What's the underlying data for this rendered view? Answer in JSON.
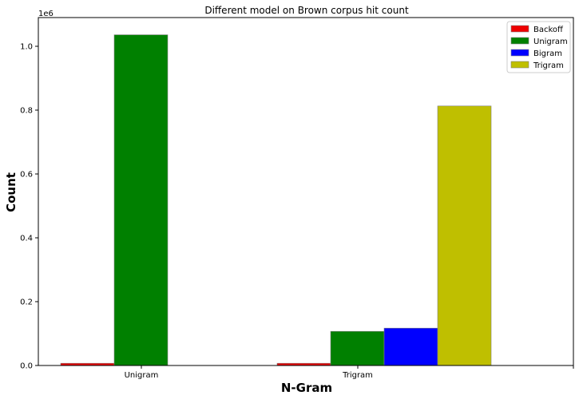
{
  "chart_data": {
    "type": "bar",
    "title": "Different model on Brown corpus hit count",
    "xlabel": "N-Gram",
    "ylabel": "Count",
    "scale_label": "1e6",
    "categories": [
      "Unigram",
      "Trigram"
    ],
    "series": [
      {
        "name": "Backoff",
        "color": "#ee0000",
        "values": [
          7000,
          7000
        ]
      },
      {
        "name": "Unigram",
        "color": "#008000",
        "values": [
          1036000,
          107000
        ]
      },
      {
        "name": "Bigram",
        "color": "#0000ff",
        "values": [
          0,
          117000
        ]
      },
      {
        "name": "Trigram",
        "color": "#bfbf00",
        "values": [
          0,
          813000
        ]
      }
    ],
    "ylim": [
      0,
      1090000
    ],
    "y_ticks": [
      0,
      200000,
      400000,
      600000,
      800000,
      1000000
    ],
    "y_tick_labels": [
      "0.0",
      "0.2",
      "0.4",
      "0.6",
      "0.8",
      "1.0"
    ],
    "grid": false,
    "legend_position": "top-right"
  }
}
